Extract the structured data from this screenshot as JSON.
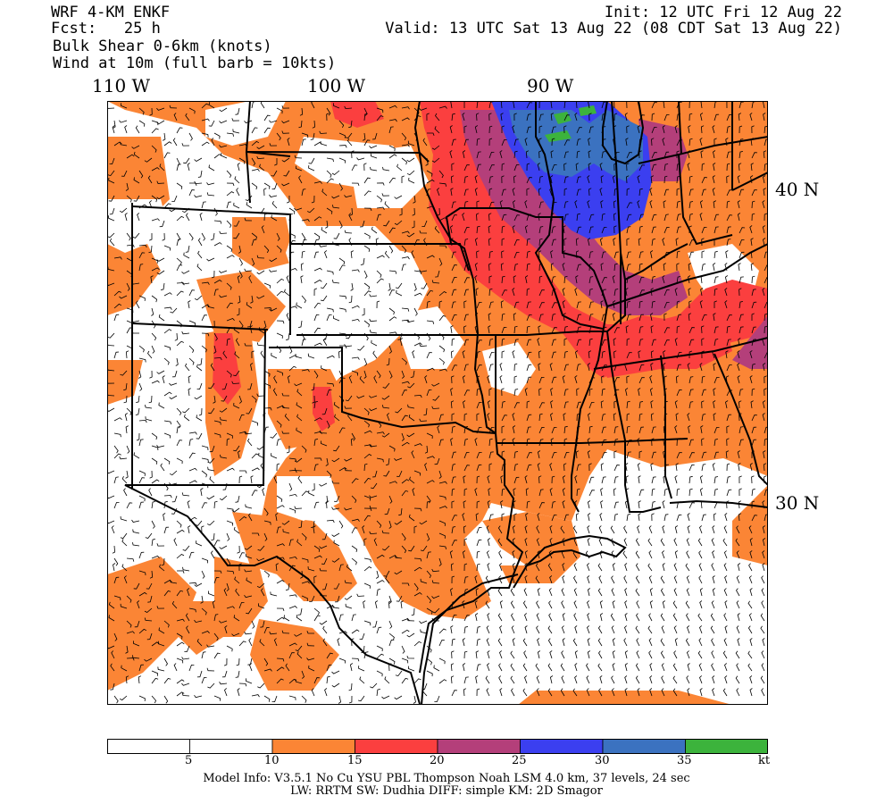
{
  "header": {
    "model": "WRF 4-KM ENKF",
    "fcst": "Fcst:   25 h",
    "field": "Bulk Shear 0-6km (knots)",
    "wind": "Wind at 10m (full barb = 10kts)",
    "init": "Init: 12 UTC Fri 12 Aug 22",
    "valid": "Valid: 13 UTC Sat 13 Aug 22 (08 CDT Sat 13 Aug 22)"
  },
  "axes": {
    "lon_labels": [
      "110 W",
      "100 W",
      "90 W"
    ],
    "lat_labels": [
      "40 N",
      "30 N"
    ]
  },
  "colorbar": {
    "bins": [
      {
        "from": 0,
        "to": 5,
        "color": "#ffffff"
      },
      {
        "from": 5,
        "to": 10,
        "color": "#ffffff"
      },
      {
        "from": 10,
        "to": 15,
        "color": "#fb8535"
      },
      {
        "from": 15,
        "to": 20,
        "color": "#fb3f3f"
      },
      {
        "from": 20,
        "to": 25,
        "color": "#b43f7a"
      },
      {
        "from": 25,
        "to": 30,
        "color": "#3b3ff0"
      },
      {
        "from": 30,
        "to": 35,
        "color": "#3b72c0"
      },
      {
        "from": 35,
        "to": 40,
        "color": "#3cb33c"
      }
    ],
    "tick_labels": [
      "5",
      "10",
      "15",
      "20",
      "25",
      "30",
      "35"
    ],
    "unit": "kt"
  },
  "footer": {
    "line1": "Model Info: V3.5.1    No Cu    YSU PBL  Thompson      Noah LSM  4.0 km,  37 levels,    24 sec",
    "line2": "LW: RRTM SW: Dudhia  DIFF: simple KM: 2D Smagor"
  }
}
